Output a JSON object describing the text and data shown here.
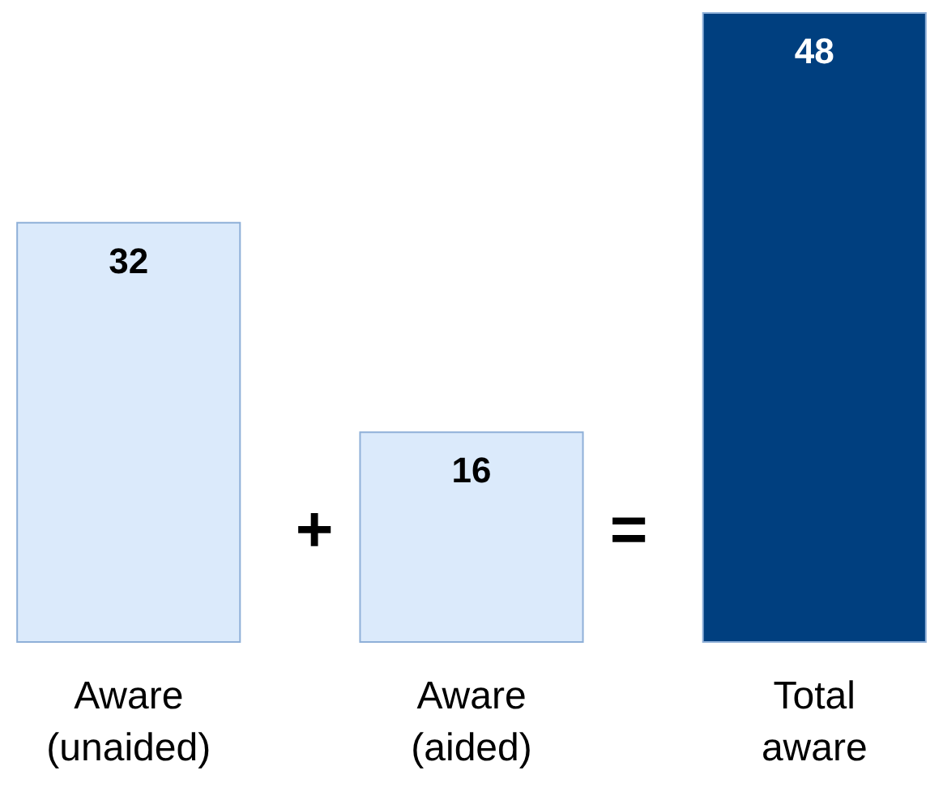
{
  "chart_data": {
    "type": "bar",
    "categories": [
      "Aware (unaided)",
      "Aware (aided)",
      "Total aware"
    ],
    "values": [
      32,
      16,
      48
    ],
    "colors": [
      "#dbeafb",
      "#dbeafb",
      "#003f7f"
    ],
    "data_labels": true,
    "annotations": [
      "+",
      "="
    ]
  }
}
